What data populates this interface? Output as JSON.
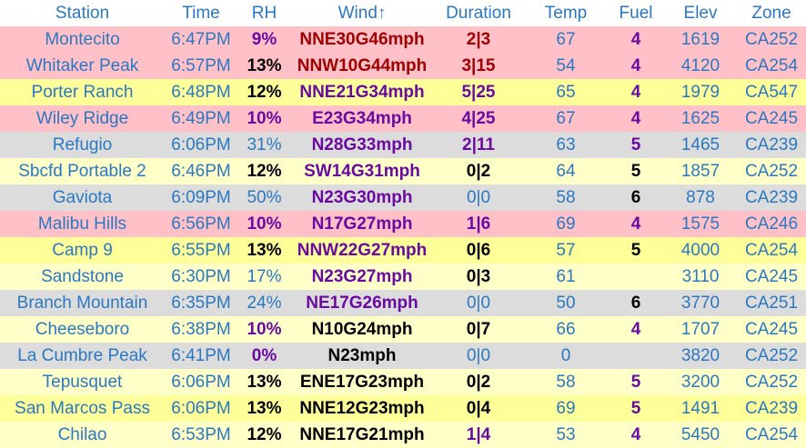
{
  "table": {
    "header": [
      "Station",
      "Time",
      "RH",
      "Wind↑",
      "Duration",
      "Temp",
      "Fuel",
      "Elev",
      "Zone"
    ],
    "rows": [
      [
        "Montecito",
        "6:47PM",
        "9%",
        "NNE30G46mph",
        "2|3",
        67,
        4,
        1619,
        "CA252"
      ],
      [
        "Whitaker Peak",
        "6:57PM",
        "13%",
        "NNW10G44mph",
        "3|15",
        54,
        4,
        4120,
        "CA254"
      ],
      [
        "Porter Ranch",
        "6:48PM",
        "12%",
        "NNE21G34mph",
        "5|25",
        65,
        4,
        1979,
        "CA547"
      ],
      [
        "Wiley Ridge",
        "6:49PM",
        "10%",
        "E23G34mph",
        "4|25",
        67,
        4,
        1625,
        "CA245"
      ],
      [
        "Refugio",
        "6:06PM",
        "31%",
        "N28G33mph",
        "2|11",
        63,
        5,
        1465,
        "CA239"
      ],
      [
        "Sbcfd Portable 2",
        "6:46PM",
        "12%",
        "SW14G31mph",
        "0|2",
        64,
        5,
        1857,
        "CA252"
      ],
      [
        "Gaviota",
        "6:09PM",
        "50%",
        "N23G30mph",
        "0|0",
        58,
        6,
        878,
        "CA239"
      ],
      [
        "Malibu Hills",
        "6:56PM",
        "10%",
        "N17G27mph",
        "1|6",
        69,
        4,
        1575,
        "CA246"
      ],
      [
        "Camp 9",
        "6:55PM",
        "13%",
        "NNW22G27mph",
        "0|6",
        57,
        5,
        4000,
        "CA254"
      ],
      [
        "Sandstone",
        "6:30PM",
        "17%",
        "N23G27mph",
        "0|3",
        61,
        null,
        3110,
        "CA245"
      ],
      [
        "Branch Mountain",
        "6:35PM",
        "24%",
        "NE17G26mph",
        "0|0",
        50,
        6,
        3770,
        "CA251"
      ],
      [
        "Cheeseboro",
        "6:38PM",
        "10%",
        "N10G24mph",
        "0|7",
        66,
        4,
        1707,
        "CA245"
      ],
      [
        "La Cumbre Peak",
        "6:41PM",
        "0%",
        "N23mph",
        "0|0",
        0,
        null,
        3820,
        "CA252"
      ],
      [
        "Tepusquet",
        "6:06PM",
        "13%",
        "ENE17G23mph",
        "0|2",
        58,
        5,
        3200,
        "CA252"
      ],
      [
        "San Marcos Pass",
        "6:06PM",
        "13%",
        "NNE12G23mph",
        "0|4",
        69,
        5,
        1491,
        "CA239"
      ],
      [
        "Chilao",
        "6:53PM",
        "12%",
        "NNE17G21mph",
        "1|4",
        53,
        4,
        5450,
        "CA254"
      ]
    ]
  }
}
